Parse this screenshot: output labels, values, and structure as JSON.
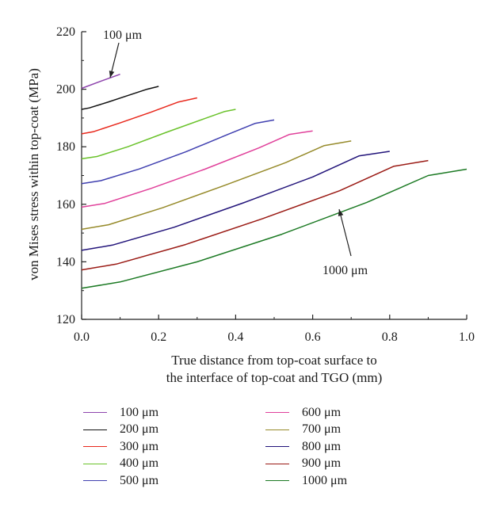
{
  "chart_data": {
    "type": "line",
    "xlabel_lines": [
      "True distance from top-coat surface to",
      "the interface of top-coat and TGO (mm)"
    ],
    "ylabel": "von Mises stress within top-coat (MPa)",
    "xlim": [
      0.0,
      1.0
    ],
    "ylim": [
      120,
      220
    ],
    "x_ticks": [
      0.0,
      0.2,
      0.4,
      0.6,
      0.8,
      1.0
    ],
    "x_tick_labels": [
      "0.0",
      "0.2",
      "0.4",
      "0.6",
      "0.8",
      "1.0"
    ],
    "y_ticks": [
      120,
      140,
      160,
      180,
      200,
      220
    ],
    "y_tick_labels": [
      "120",
      "140",
      "160",
      "180",
      "200",
      "220"
    ],
    "grid": false,
    "legend_placement": "below",
    "annotations": [
      {
        "text": "100 μm",
        "target_series": "100 μm"
      },
      {
        "text": "1000 μm",
        "target_series": "1000 μm"
      }
    ],
    "series": [
      {
        "name": "100 μm",
        "color": "#8e44ad",
        "x": [
          0.0,
          0.05,
          0.1
        ],
        "y": [
          200.3,
          202.8,
          205.2
        ]
      },
      {
        "name": "200 μm",
        "color": "#111111",
        "x": [
          0.0,
          0.02,
          0.07,
          0.12,
          0.17,
          0.2
        ],
        "y": [
          193.0,
          193.5,
          195.6,
          197.8,
          200.0,
          201.0
        ]
      },
      {
        "name": "300 μm",
        "color": "#e8281c",
        "x": [
          0.0,
          0.03,
          0.1,
          0.18,
          0.25,
          0.3
        ],
        "y": [
          184.5,
          185.2,
          188.3,
          192.0,
          195.5,
          197.0
        ]
      },
      {
        "name": "400 μm",
        "color": "#6ac22b",
        "x": [
          0.0,
          0.04,
          0.12,
          0.22,
          0.32,
          0.37,
          0.4
        ],
        "y": [
          175.8,
          176.6,
          180.0,
          185.0,
          189.8,
          192.2,
          193.0
        ]
      },
      {
        "name": "500 μm",
        "color": "#4040b0",
        "x": [
          0.0,
          0.05,
          0.15,
          0.27,
          0.38,
          0.45,
          0.5
        ],
        "y": [
          167.2,
          168.2,
          172.3,
          178.2,
          184.3,
          188.1,
          189.3
        ]
      },
      {
        "name": "600 μm",
        "color": "#e0409a",
        "x": [
          0.0,
          0.06,
          0.18,
          0.32,
          0.46,
          0.54,
          0.6
        ],
        "y": [
          159.0,
          160.3,
          165.5,
          172.2,
          179.6,
          184.3,
          185.5
        ]
      },
      {
        "name": "700 μm",
        "color": "#968a2a",
        "x": [
          0.0,
          0.07,
          0.21,
          0.37,
          0.53,
          0.63,
          0.7
        ],
        "y": [
          151.3,
          152.9,
          158.8,
          166.5,
          174.5,
          180.4,
          182.0
        ]
      },
      {
        "name": "800 μm",
        "color": "#22147a",
        "x": [
          0.0,
          0.08,
          0.24,
          0.42,
          0.6,
          0.72,
          0.8
        ],
        "y": [
          144.0,
          145.8,
          152.0,
          160.5,
          169.5,
          176.8,
          178.4
        ]
      },
      {
        "name": "900 μm",
        "color": "#9a1a14",
        "x": [
          0.0,
          0.09,
          0.27,
          0.47,
          0.67,
          0.81,
          0.9
        ],
        "y": [
          137.2,
          139.2,
          146.0,
          155.0,
          164.7,
          173.2,
          175.2
        ]
      },
      {
        "name": "1000 μm",
        "color": "#1c7a24",
        "x": [
          0.0,
          0.1,
          0.3,
          0.52,
          0.74,
          0.9,
          1.0
        ],
        "y": [
          130.8,
          133.0,
          140.0,
          149.6,
          160.6,
          170.0,
          172.2
        ]
      }
    ]
  }
}
